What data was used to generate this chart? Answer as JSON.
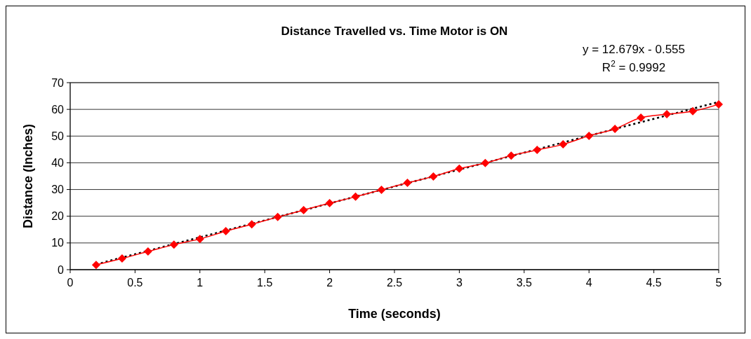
{
  "chart_data": {
    "type": "line",
    "title": "Distance Travelled vs. Time Motor is ON",
    "xlabel": "Time (seconds)",
    "ylabel": "Distance (Inches)",
    "annotations": [
      "y = 12.679x - 0.555",
      "R$^{2}$ = 0.9992"
    ],
    "xlim": [
      0,
      5
    ],
    "xticks": [
      0,
      0.5,
      1,
      1.5,
      2,
      2.5,
      3,
      3.5,
      4,
      4.5,
      5
    ],
    "ylim": [
      0,
      70
    ],
    "yticks": [
      0,
      10,
      20,
      30,
      40,
      50,
      60,
      70
    ],
    "grid": "y",
    "series": [
      {
        "color": "#ff0000",
        "marker": "diamond",
        "line_style": "solid",
        "x": [
          0.2,
          0.4,
          0.6,
          0.8,
          1,
          1.2,
          1.4,
          1.6,
          1.8,
          2,
          2.2,
          2.4,
          2.6,
          2.8,
          3,
          3.2,
          3.4,
          3.6,
          3.8,
          4,
          4.2,
          4.4,
          4.6,
          4.8,
          5
        ],
        "values": [
          1.8,
          4.2,
          6.8,
          9.4,
          11.5,
          14.4,
          17,
          19.7,
          22.3,
          24.9,
          27.3,
          29.9,
          32.5,
          34.9,
          37.8,
          39.9,
          42.7,
          44.8,
          46.9,
          50.1,
          52.7,
          56.9,
          58.2,
          59.3,
          61.9
        ]
      },
      {
        "type": "line",
        "color": "#000000",
        "marker": "none",
        "line_style": "dotted",
        "x": [
          0.2,
          5
        ],
        "values": [
          2.0,
          62.8
        ]
      }
    ]
  }
}
